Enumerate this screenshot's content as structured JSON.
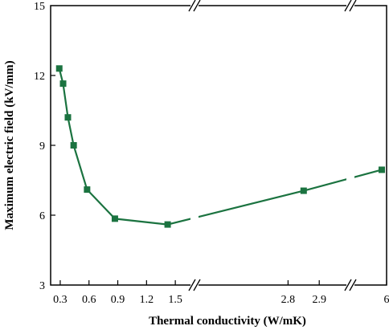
{
  "chart_data": {
    "type": "line",
    "xlabel": "Thermal conductivity (W/mK)",
    "ylabel": "Maximum electric field (kV/mm)",
    "ylim": [
      3,
      15
    ],
    "y_ticks": [
      "3",
      "6",
      "9",
      "12",
      "15"
    ],
    "x_axis_break_type": "broken axis (three segments)",
    "x_segments": [
      {
        "range": [
          0.2,
          1.7
        ],
        "ticks": [
          "0.3",
          "0.6",
          "0.9",
          "1.2",
          "1.5"
        ]
      },
      {
        "range": [
          2.5,
          3.0
        ],
        "ticks": [
          "2.8",
          "2.9"
        ]
      },
      {
        "range": [
          4.5,
          6.0
        ],
        "ticks": [
          "6"
        ]
      }
    ],
    "series_color": "#1b7340",
    "series": [
      {
        "points": [
          {
            "x": 0.29,
            "y": 12.3
          },
          {
            "x": 0.33,
            "y": 11.65
          },
          {
            "x": 0.38,
            "y": 10.2
          },
          {
            "x": 0.44,
            "y": 9.0
          },
          {
            "x": 0.58,
            "y": 7.1
          },
          {
            "x": 0.87,
            "y": 5.85
          },
          {
            "x": 1.42,
            "y": 5.6
          },
          {
            "x": 2.85,
            "y": 7.05
          },
          {
            "x": 5.8,
            "y": 7.95
          }
        ]
      }
    ]
  }
}
